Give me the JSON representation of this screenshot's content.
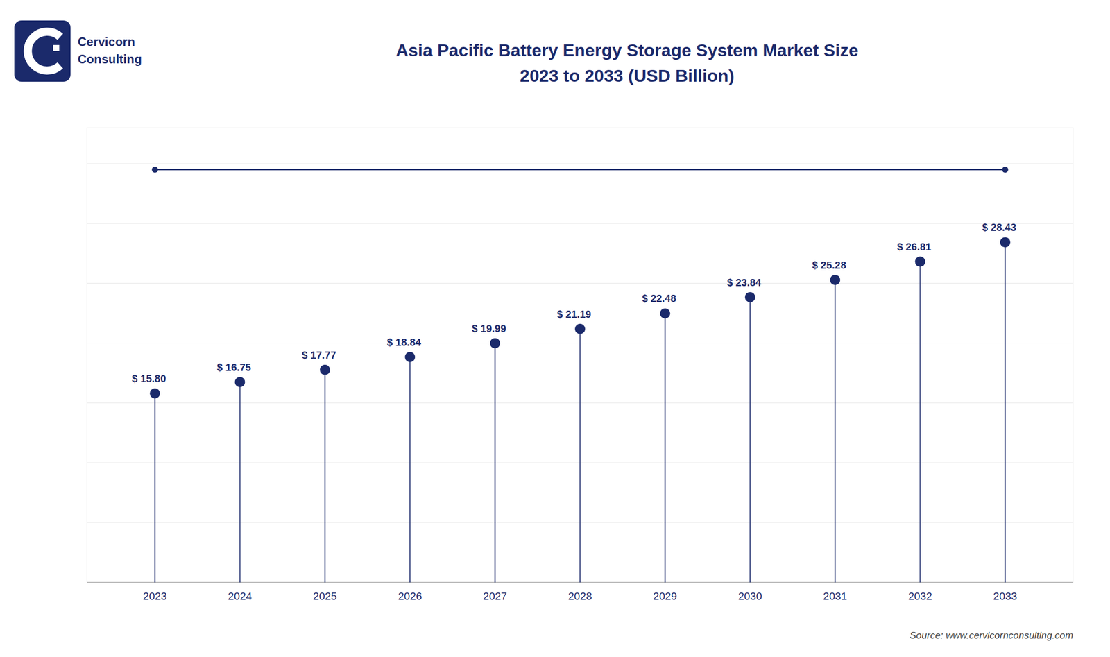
{
  "chart_data": {
    "type": "lollipop",
    "title": "Asia Pacific Battery Energy Storage System Market Size",
    "subtitle": "2023 to 2033 (USD Billion)",
    "x": [
      2023,
      2024,
      2025,
      2026,
      2027,
      2028,
      2029,
      2030,
      2031,
      2032,
      2033
    ],
    "values": [
      15.8,
      16.75,
      17.77,
      18.84,
      19.99,
      21.19,
      22.48,
      23.84,
      25.28,
      26.81,
      28.43
    ],
    "value_labels": [
      "$ 15.80",
      "$ 16.75",
      "$ 17.77",
      "$ 18.84",
      "$ 19.99",
      "$ 21.19",
      "$ 22.48",
      "$ 23.84",
      "$ 25.28",
      "$ 26.81",
      "$ 28.43"
    ],
    "data_labels": true,
    "color": "#1b2a6b",
    "xlim": [
      2022.2,
      2033.8
    ],
    "xticks": [
      2023,
      2024,
      2025,
      2026,
      2027,
      2028,
      2029,
      2030,
      2031,
      2032,
      2033
    ],
    "ylim": [
      0,
      38
    ],
    "yticks": [
      5,
      10,
      15,
      20,
      25,
      30,
      35
    ],
    "grid": true,
    "tick_labels": "x",
    "hline": 34.5,
    "annotations": [
      "Cervicorn",
      "Consulting",
      "Source: www.cervicornconsulting.com"
    ]
  }
}
